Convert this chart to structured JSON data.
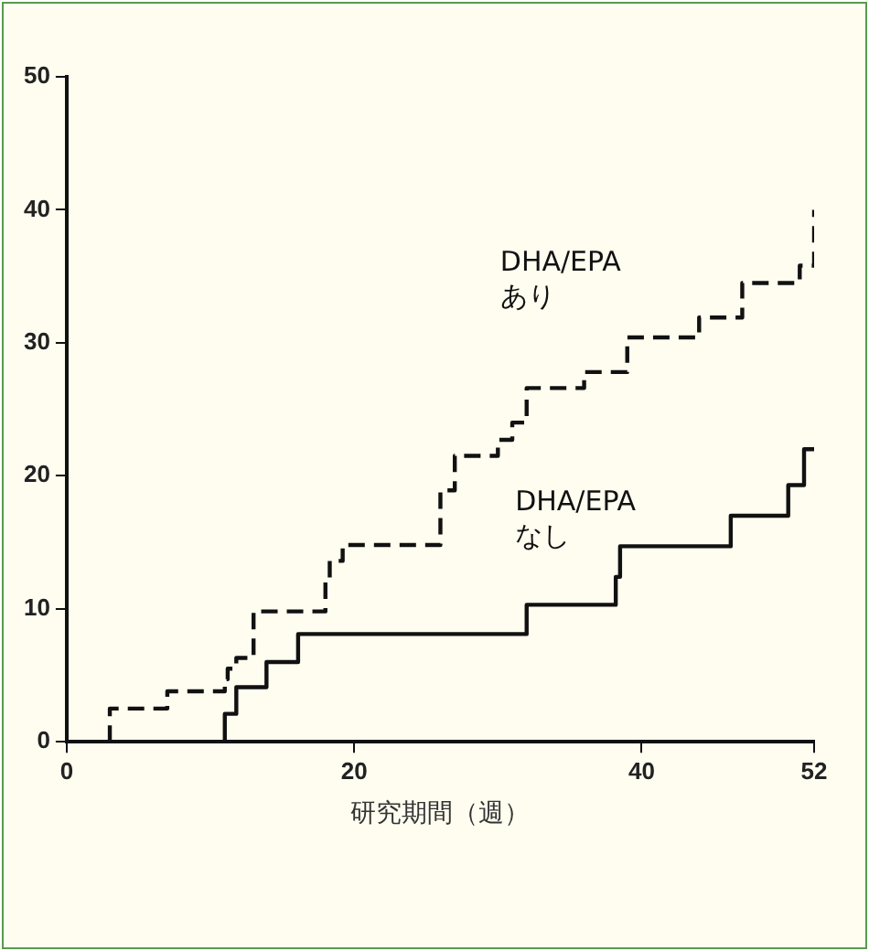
{
  "chart_data": {
    "type": "step",
    "xlabel": "研究期間（週）",
    "xlim": [
      0,
      52
    ],
    "xticks": [
      0,
      20,
      40,
      52
    ],
    "ylim": [
      0,
      50
    ],
    "yticks": [
      0,
      10,
      20,
      30,
      40,
      50
    ],
    "grid": false,
    "legend": false,
    "marker": "none",
    "series": [
      {
        "name": "DHA/EPA あり",
        "color": "#111111",
        "line_style": "dashed",
        "x": [
          3,
          3,
          7,
          11,
          11.2,
          11.8,
          13,
          18,
          18.3,
          19.2,
          26,
          27,
          30,
          31,
          32,
          36,
          39,
          44,
          47,
          51,
          52
        ],
        "values": [
          0,
          2.5,
          3.8,
          4.7,
          5.5,
          6.3,
          9.8,
          12.2,
          13.6,
          14.8,
          18.9,
          21.5,
          22.7,
          24,
          26.6,
          27.8,
          30.4,
          31.9,
          34.5,
          35.8,
          40
        ]
      },
      {
        "name": "DHA/EPA なし",
        "color": "#111111",
        "line_style": "solid",
        "x": [
          11,
          11,
          11.8,
          13.9,
          16.1,
          32,
          38.2,
          38.5,
          46.2,
          50.2,
          51.3,
          52
        ],
        "values": [
          0,
          2.1,
          4.1,
          6,
          8.1,
          10.3,
          12.4,
          14.7,
          17,
          19.3,
          22,
          22
        ]
      }
    ]
  }
}
